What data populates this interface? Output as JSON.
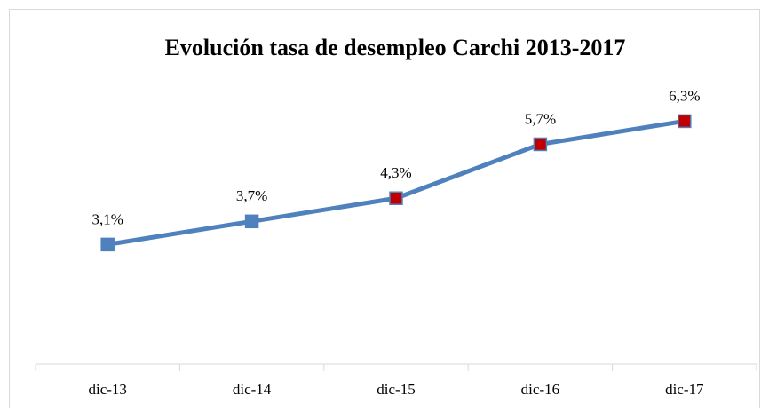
{
  "chart_data": {
    "type": "line",
    "title": "Evolución tasa de desempleo Carchi 2013-2017",
    "categories": [
      "dic-13",
      "dic-14",
      "dic-15",
      "dic-16",
      "dic-17"
    ],
    "series": [
      {
        "color": "#4f81bd",
        "values": [
          3.1,
          3.7,
          4.3,
          5.7,
          6.3
        ],
        "value_labels": [
          "3,1%",
          "3,7%",
          "4,3%",
          "5,7%",
          "6,3%"
        ],
        "marker_colors": [
          "#4f81bd",
          "#4f81bd",
          "#c00000",
          "#c00000",
          "#c00000"
        ]
      }
    ],
    "ylim": [
      0,
      7
    ]
  }
}
